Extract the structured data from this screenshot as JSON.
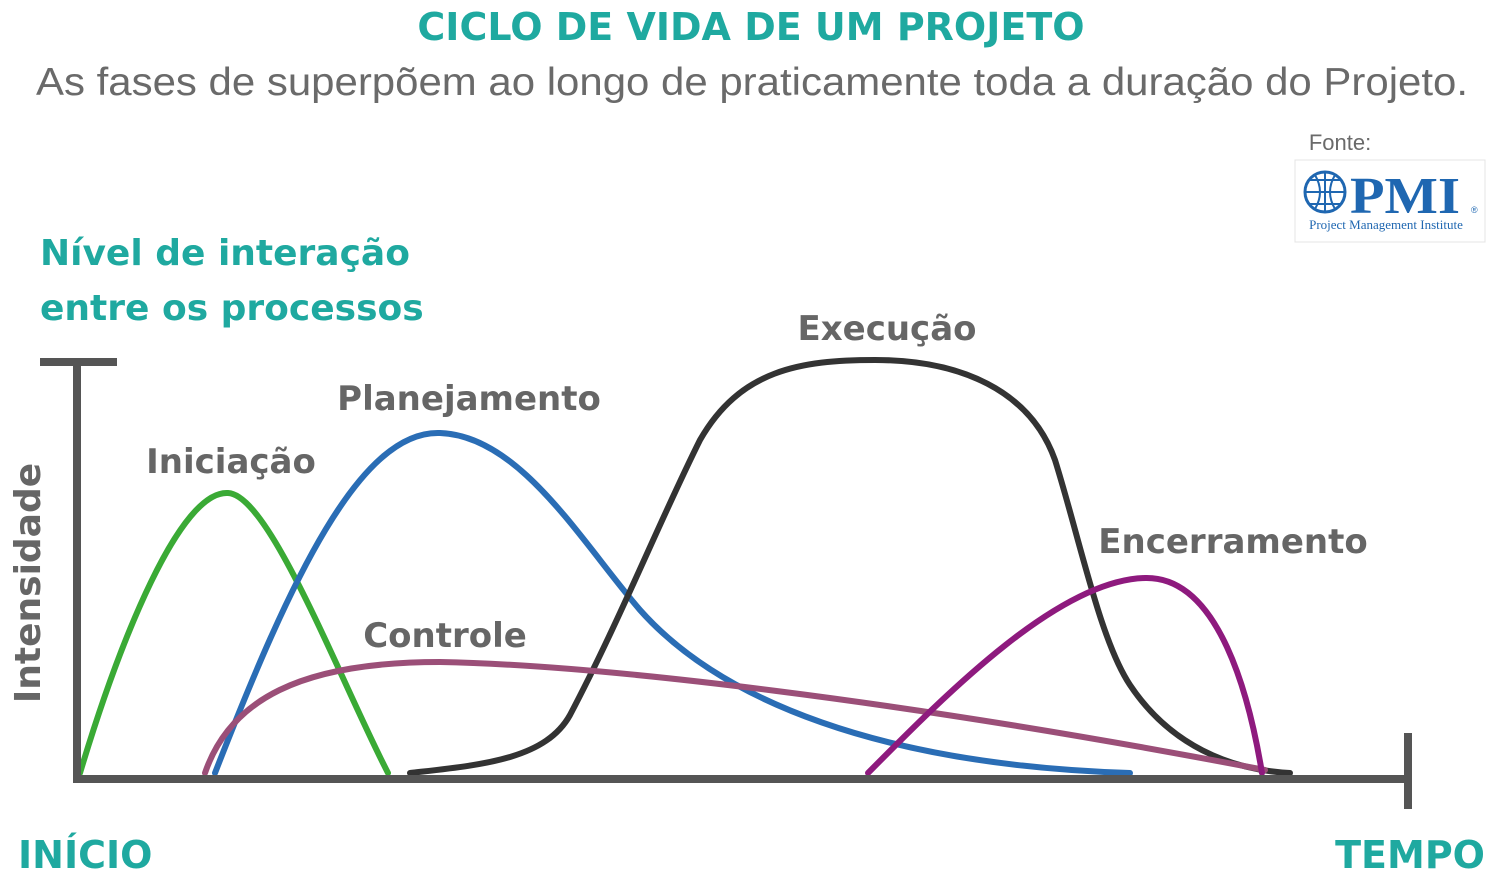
{
  "header": {
    "title": "CICLO DE VIDA DE UM PROJETO",
    "subtitle": "As fases de superpõem ao longo de praticamente toda a duração do Projeto."
  },
  "source": {
    "label": "Fonte:",
    "logo": {
      "mark": "PMI",
      "registered": "®",
      "name": "Project Management Institute"
    }
  },
  "axes": {
    "y_title": [
      "Nível de interação",
      "entre os processos"
    ],
    "y_label": "Intensidade",
    "start": "INÍCIO",
    "end": "TEMPO"
  },
  "phases": [
    "Iniciação",
    "Planejamento",
    "Execução",
    "Controle",
    "Encerramento"
  ]
}
